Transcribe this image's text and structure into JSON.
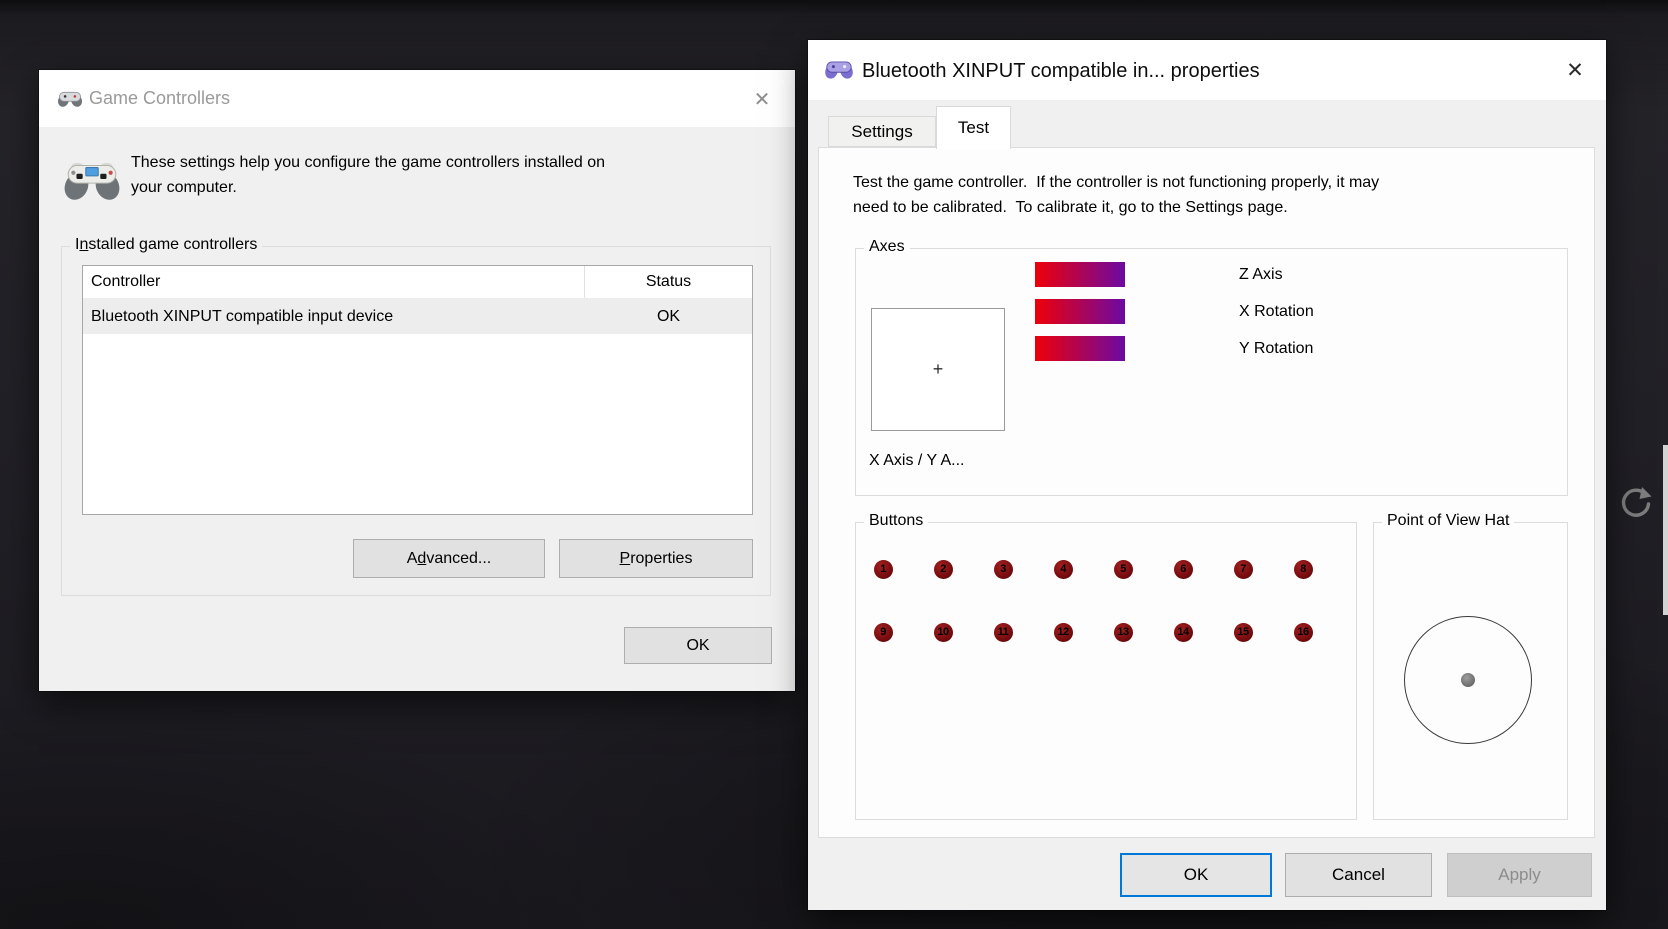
{
  "icons": {
    "close_glyph": "✕",
    "crosshair_glyph": "+",
    "left_titlebar_icon": "gamepad-icon",
    "right_titlebar_icon": "gamepad-icon",
    "body_icon": "game-controller-icon",
    "overlay_icon": "rotate-clockwise-icon"
  },
  "game_controllers_dialog": {
    "title": "Game Controllers",
    "intro_line1": "These settings help you configure the game controllers installed on",
    "intro_line2": "your computer.",
    "group": {
      "label_pre": "I",
      "label_mn": "n",
      "label_post": "stalled game controllers"
    },
    "table": {
      "col_controller": "Controller",
      "col_status": "Status",
      "rows": [
        {
          "controller": "Bluetooth XINPUT compatible input device",
          "status": "OK"
        }
      ]
    },
    "advanced": {
      "pre": "A",
      "mn": "d",
      "post": "vanced..."
    },
    "properties": {
      "mn": "P",
      "post": "roperties"
    },
    "ok": "OK"
  },
  "properties_dialog": {
    "title": "Bluetooth XINPUT compatible in... properties",
    "tabs": {
      "settings": "Settings",
      "test": "Test"
    },
    "intro_line1": "Test the game controller.  If the controller is not functioning properly, it may",
    "intro_line2": "need to be calibrated.  To calibrate it, go to the Settings page.",
    "axes": {
      "label": "Axes",
      "xy_label": "X Axis / Y A...",
      "bars": [
        {
          "label": "Z Axis"
        },
        {
          "label": "X Rotation"
        },
        {
          "label": "Y Rotation"
        }
      ],
      "bar_gradient_left": "#ee0008",
      "bar_gradient_right": "#6b0aa2"
    },
    "buttons_group": {
      "label": "Buttons",
      "numbers": [
        1,
        2,
        3,
        4,
        5,
        6,
        7,
        8,
        9,
        10,
        11,
        12,
        13,
        14,
        15,
        16
      ],
      "button_color": "#760b0e"
    },
    "pov_group": {
      "label": "Point of View Hat"
    },
    "footer": {
      "ok": "OK",
      "cancel": "Cancel",
      "apply": "Apply"
    },
    "accent_color": "#0078d7"
  }
}
